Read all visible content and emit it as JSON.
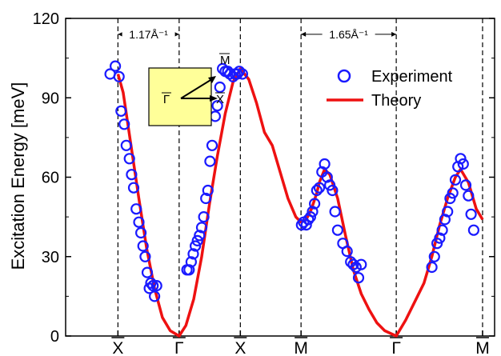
{
  "chart_data": {
    "type": "scatter",
    "title": "",
    "xlabel": "",
    "ylabel": "Excitation Energy [meV]",
    "ylim": [
      0,
      120
    ],
    "y_ticks": [
      0,
      30,
      60,
      90,
      120
    ],
    "x_ticks": [
      {
        "x": 1.0,
        "label": "X"
      },
      {
        "x": 2.17,
        "label": "Γ"
      },
      {
        "x": 3.34,
        "label": "X"
      },
      {
        "x": 4.5,
        "label": "M"
      },
      {
        "x": 6.32,
        "label": "Γ"
      },
      {
        "x": 7.97,
        "label": "M"
      }
    ],
    "xlim": [
      0.0,
      8.2
    ],
    "grid": false,
    "legend": {
      "position": "top-right",
      "entries": [
        {
          "name": "Experiment",
          "marker": "open-circle",
          "color": "#1a1aff"
        },
        {
          "name": "Theory",
          "marker": "line",
          "color": "#ee1111"
        }
      ]
    },
    "annotations": [
      {
        "text": "1.17Å⁻¹",
        "from": 1.0,
        "to": 2.17,
        "y": 114
      },
      {
        "text": "1.65Å⁻¹",
        "from": 4.5,
        "to": 6.32,
        "y": 114
      }
    ],
    "inset": {
      "labels": [
        "M",
        "Γ",
        "X"
      ],
      "fill": "#ffff99"
    },
    "series": [
      {
        "name": "Theory",
        "color": "#ee1111",
        "x": [
          1.0,
          1.1,
          1.25,
          1.4,
          1.55,
          1.7,
          1.85,
          2.0,
          2.17,
          2.3,
          2.45,
          2.6,
          2.75,
          2.9,
          3.05,
          3.2,
          3.34,
          3.5,
          3.65,
          3.8,
          3.95,
          4.1,
          4.25,
          4.4,
          4.5,
          4.6,
          4.7,
          4.8,
          4.85,
          4.95,
          5.05,
          5.2,
          5.35,
          5.5,
          5.65,
          5.8,
          5.95,
          6.1,
          6.32,
          6.5,
          6.7,
          6.85,
          7.0,
          7.15,
          7.3,
          7.45,
          7.55,
          7.7,
          7.85,
          7.97
        ],
        "y": [
          99,
          92,
          72,
          52,
          33,
          18,
          7,
          2,
          0,
          4,
          14,
          30,
          50,
          68,
          84,
          96,
          101,
          97,
          88,
          77,
          72,
          62,
          52,
          45,
          43,
          44,
          48,
          54,
          58,
          63,
          61,
          52,
          38,
          25,
          16,
          10,
          5,
          2,
          0,
          6,
          14,
          20,
          30,
          42,
          52,
          60,
          63,
          58,
          48,
          44
        ]
      },
      {
        "name": "Experiment",
        "color": "#1a1aff",
        "x": [
          0.85,
          0.95,
          1.02,
          1.06,
          1.12,
          1.16,
          1.22,
          1.26,
          1.3,
          1.35,
          1.4,
          1.44,
          1.48,
          1.52,
          1.56,
          1.6,
          1.63,
          1.67,
          1.7,
          1.74,
          2.32,
          2.36,
          2.4,
          2.44,
          2.48,
          2.52,
          2.56,
          2.6,
          2.64,
          2.68,
          2.72,
          2.76,
          2.8,
          2.86,
          2.9,
          2.95,
          3.0,
          3.05,
          3.1,
          3.14,
          3.2,
          3.24,
          3.28,
          3.32,
          3.38,
          4.51,
          4.55,
          4.6,
          4.64,
          4.68,
          4.72,
          4.76,
          4.8,
          4.85,
          4.9,
          4.95,
          5.0,
          5.05,
          5.1,
          5.15,
          5.2,
          5.3,
          5.38,
          5.45,
          5.5,
          5.55,
          5.6,
          5.65,
          7.0,
          7.05,
          7.1,
          7.15,
          7.2,
          7.25,
          7.3,
          7.35,
          7.4,
          7.45,
          7.5,
          7.55,
          7.6,
          7.65,
          7.7,
          7.75,
          7.8
        ],
        "y": [
          99,
          102,
          98,
          85,
          80,
          72,
          67,
          61,
          56,
          48,
          43,
          39,
          34,
          30,
          24,
          18,
          20,
          19,
          15,
          19,
          25,
          25,
          28,
          31,
          34,
          36,
          38,
          41,
          45,
          52,
          55,
          66,
          72,
          83,
          87,
          94,
          101,
          100,
          100,
          99,
          98,
          99,
          99,
          100,
          99,
          42,
          43,
          42,
          44,
          45,
          47,
          50,
          55,
          56,
          62,
          65,
          60,
          57,
          55,
          47,
          40,
          35,
          32,
          28,
          27,
          26,
          22,
          27,
          26,
          30,
          35,
          37,
          40,
          44,
          47,
          52,
          54,
          59,
          64,
          67,
          65,
          57,
          53,
          46,
          40
        ]
      }
    ]
  }
}
